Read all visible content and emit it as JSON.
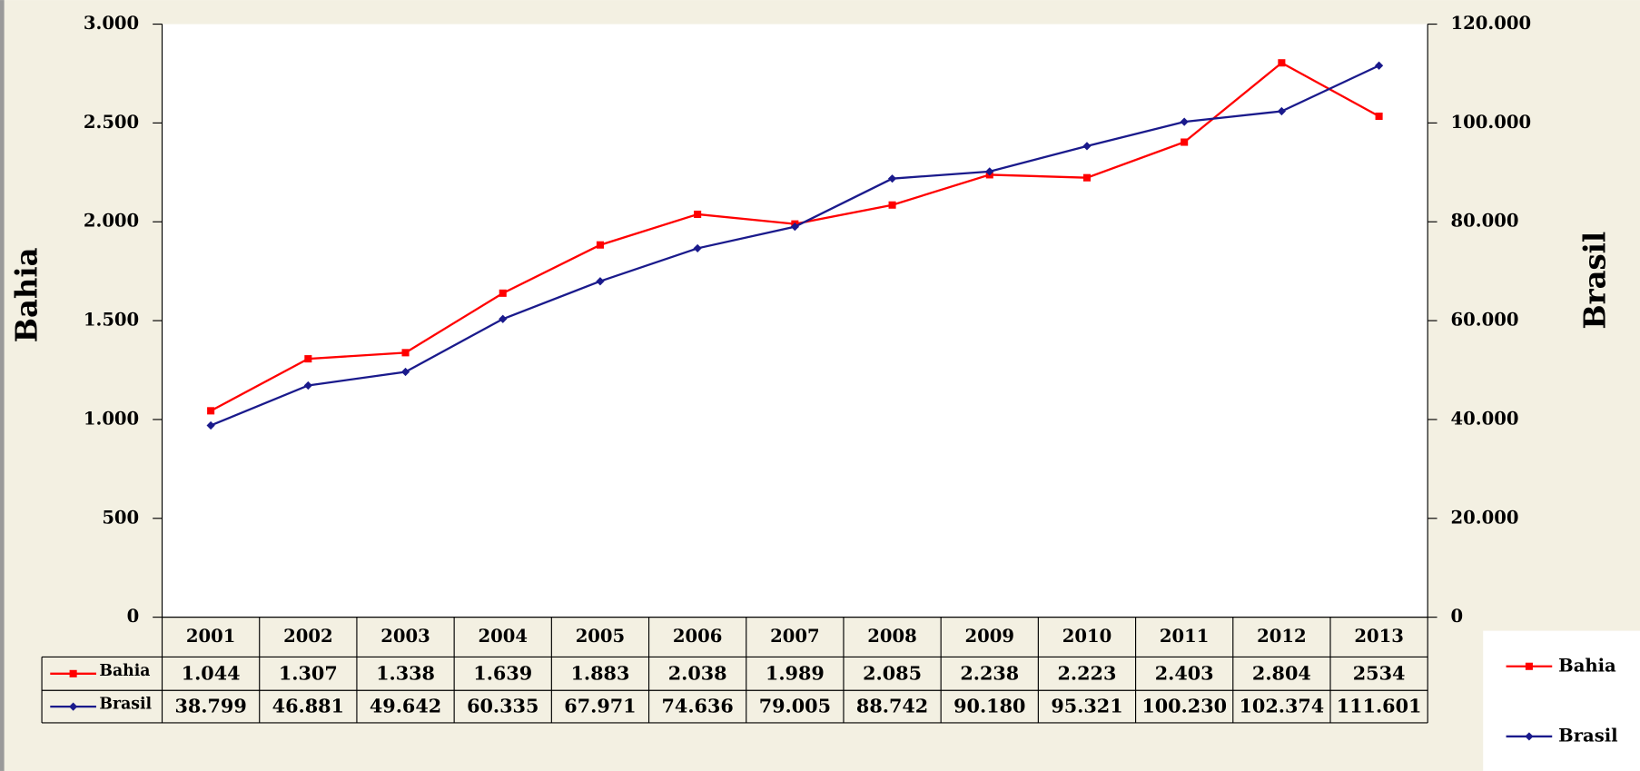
{
  "chart_data": {
    "type": "line",
    "y_label": "Bahia",
    "y2_label": "Brasil",
    "categories": [
      "2001",
      "2002",
      "2003",
      "2004",
      "2005",
      "2006",
      "2007",
      "2008",
      "2009",
      "2010",
      "2011",
      "2012",
      "2013"
    ],
    "series": [
      {
        "name": "Bahia",
        "color": "#ff0000",
        "marker": "square",
        "values": [
          1044,
          1307,
          1338,
          1639,
          1883,
          2038,
          1989,
          2085,
          2238,
          2223,
          2403,
          2804,
          2534
        ],
        "value_labels": [
          "1.044",
          "1.307",
          "1.338",
          "1.639",
          "1.883",
          "2.038",
          "1.989",
          "2.085",
          "2.238",
          "2.223",
          "2.403",
          "2.804",
          "2534"
        ]
      },
      {
        "name": "Brasil",
        "color": "#1a1a8c",
        "marker": "diamond",
        "axis": "y2",
        "values": [
          38799,
          46881,
          49642,
          60335,
          67971,
          74636,
          79005,
          88742,
          90180,
          95321,
          100230,
          102374,
          111601
        ],
        "value_labels": [
          "38.799",
          "46.881",
          "49.642",
          "60.335",
          "67.971",
          "74.636",
          "79.005",
          "88.742",
          "90.180",
          "95.321",
          "100.230",
          "102.374",
          "111.601"
        ]
      }
    ],
    "ylim": [
      0,
      3000
    ],
    "yticks": [
      0,
      500,
      {
        "value": 1000,
        "label": "1.000"
      },
      {
        "value": 1500,
        "label": "1.500"
      },
      {
        "value": 2000,
        "label": "2.000"
      },
      {
        "value": 2500,
        "label": "2.500"
      },
      {
        "value": 3000,
        "label": "3.000"
      }
    ],
    "y2lim": [
      0,
      120000
    ],
    "y2ticks": [
      0,
      {
        "value": 20000,
        "label": "20.000"
      },
      {
        "value": 40000,
        "label": "40.000"
      },
      {
        "value": 60000,
        "label": "60.000"
      },
      {
        "value": 80000,
        "label": "80.000"
      },
      {
        "value": 100000,
        "label": "100.000"
      },
      {
        "value": 120000,
        "label": "120.000"
      }
    ],
    "grid": false,
    "legend": "lower right",
    "data_table": true
  }
}
